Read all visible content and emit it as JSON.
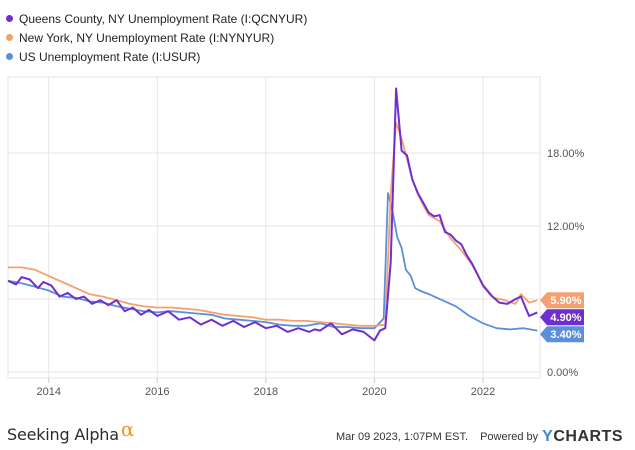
{
  "colors": {
    "queens": "#6f2fcf",
    "newyork": "#f6a070",
    "us": "#5b8fd9"
  },
  "chart_data": {
    "type": "line",
    "title": "",
    "xlabel": "",
    "ylabel": "",
    "xlim": [
      2013.25,
      2023.05
    ],
    "ylim": [
      0,
      24
    ],
    "x_ticks": [
      {
        "value": 2014,
        "label": "2014"
      },
      {
        "value": 2016,
        "label": "2016"
      },
      {
        "value": 2018,
        "label": "2018"
      },
      {
        "value": 2020,
        "label": "2020"
      },
      {
        "value": 2022,
        "label": "2022"
      }
    ],
    "y_ticks": [
      {
        "value": 0,
        "label": "0.00%"
      },
      {
        "value": 6,
        "label": "6.00%"
      },
      {
        "value": 12,
        "label": "12.00%"
      },
      {
        "value": 18,
        "label": "18.00%"
      }
    ],
    "grid": true,
    "legend": "top-left",
    "series": [
      {
        "name": "Queens County, NY Unemployment Rate (I:QCNYUR)",
        "last_label": "4.90%",
        "x": [
          2013.25,
          2013.4,
          2013.5,
          2013.65,
          2013.8,
          2013.9,
          2014.05,
          2014.2,
          2014.35,
          2014.5,
          2014.65,
          2014.8,
          2014.95,
          2015.1,
          2015.25,
          2015.4,
          2015.55,
          2015.7,
          2015.85,
          2016.0,
          2016.2,
          2016.4,
          2016.6,
          2016.8,
          2017.0,
          2017.2,
          2017.4,
          2017.6,
          2017.8,
          2018.0,
          2018.2,
          2018.4,
          2018.6,
          2018.8,
          2018.9,
          2019.0,
          2019.2,
          2019.4,
          2019.6,
          2019.8,
          2020.0,
          2020.1,
          2020.2,
          2020.3,
          2020.4,
          2020.5,
          2020.6,
          2020.7,
          2020.8,
          2020.9,
          2021.0,
          2021.1,
          2021.2,
          2021.3,
          2021.4,
          2021.5,
          2021.6,
          2021.7,
          2021.8,
          2021.9,
          2022.0,
          2022.15,
          2022.3,
          2022.45,
          2022.6,
          2022.7,
          2022.85,
          2023.0
        ],
        "y": [
          7.5,
          7.2,
          7.8,
          7.6,
          6.9,
          7.4,
          7.1,
          6.2,
          6.5,
          6.0,
          6.2,
          5.6,
          5.9,
          5.5,
          5.9,
          5.0,
          5.3,
          4.7,
          5.1,
          4.6,
          5.0,
          4.3,
          4.5,
          3.9,
          4.3,
          3.8,
          4.2,
          3.7,
          4.1,
          3.6,
          3.8,
          3.3,
          3.6,
          3.3,
          3.5,
          3.4,
          4.0,
          3.1,
          3.5,
          3.3,
          2.6,
          3.4,
          3.6,
          9.0,
          23.3,
          18.2,
          17.8,
          15.8,
          14.7,
          13.9,
          13.1,
          12.8,
          12.9,
          11.5,
          11.3,
          10.8,
          10.5,
          9.6,
          8.9,
          8.0,
          7.1,
          6.3,
          5.7,
          5.6,
          6.0,
          6.2,
          4.6,
          4.9
        ]
      },
      {
        "name": "New York, NY Unemployment Rate (I:NYNYUR)",
        "last_label": "5.90%",
        "x": [
          2013.25,
          2013.5,
          2013.75,
          2014.0,
          2014.25,
          2014.5,
          2014.75,
          2015.0,
          2015.25,
          2015.5,
          2015.75,
          2016.0,
          2016.25,
          2016.5,
          2016.75,
          2017.0,
          2017.25,
          2017.5,
          2017.75,
          2018.0,
          2018.25,
          2018.5,
          2018.75,
          2019.0,
          2019.25,
          2019.5,
          2019.75,
          2020.0,
          2020.2,
          2020.3,
          2020.4,
          2020.5,
          2020.6,
          2020.7,
          2020.8,
          2020.9,
          2021.0,
          2021.2,
          2021.4,
          2021.6,
          2021.8,
          2022.0,
          2022.2,
          2022.4,
          2022.6,
          2022.7,
          2022.85,
          2023.0
        ],
        "y": [
          8.6,
          8.6,
          8.4,
          7.9,
          7.4,
          6.9,
          6.4,
          6.2,
          5.9,
          5.6,
          5.4,
          5.3,
          5.3,
          5.2,
          5.1,
          4.9,
          4.7,
          4.6,
          4.5,
          4.3,
          4.3,
          4.2,
          4.2,
          4.1,
          4.0,
          3.9,
          3.8,
          3.8,
          3.9,
          14.6,
          20.5,
          19.2,
          17.5,
          15.8,
          14.6,
          13.7,
          12.9,
          12.4,
          11.0,
          10.0,
          8.8,
          7.2,
          6.1,
          5.9,
          5.6,
          6.4,
          5.7,
          5.9
        ]
      },
      {
        "name": "US Unemployment Rate (I:USUR)",
        "last_label": "3.40%",
        "x": [
          2013.25,
          2013.5,
          2013.75,
          2014.0,
          2014.25,
          2014.5,
          2014.75,
          2015.0,
          2015.25,
          2015.5,
          2015.75,
          2016.0,
          2016.25,
          2016.5,
          2016.75,
          2017.0,
          2017.25,
          2017.5,
          2017.75,
          2018.0,
          2018.25,
          2018.5,
          2018.75,
          2019.0,
          2019.25,
          2019.5,
          2019.75,
          2020.0,
          2020.17,
          2020.25,
          2020.33,
          2020.42,
          2020.5,
          2020.58,
          2020.67,
          2020.75,
          2020.83,
          2021.0,
          2021.25,
          2021.5,
          2021.75,
          2022.0,
          2022.25,
          2022.5,
          2022.75,
          2023.0
        ],
        "y": [
          7.5,
          7.3,
          7.0,
          6.7,
          6.2,
          6.1,
          5.8,
          5.7,
          5.4,
          5.2,
          5.0,
          4.9,
          5.0,
          4.9,
          4.8,
          4.7,
          4.4,
          4.3,
          4.2,
          4.1,
          3.9,
          3.8,
          3.8,
          4.0,
          3.7,
          3.7,
          3.6,
          3.6,
          4.4,
          14.7,
          13.3,
          11.1,
          10.2,
          8.4,
          7.9,
          6.9,
          6.7,
          6.4,
          5.9,
          5.4,
          4.6,
          4.0,
          3.6,
          3.5,
          3.6,
          3.4
        ]
      }
    ]
  },
  "footer": {
    "logo_text": "Seeking Alpha",
    "logo_symbol": "α",
    "timestamp": "Mar 09 2023, 1:07PM EST.",
    "powered_by": "Powered by",
    "brand_y": "Y",
    "brand_rest": "CHARTS"
  }
}
